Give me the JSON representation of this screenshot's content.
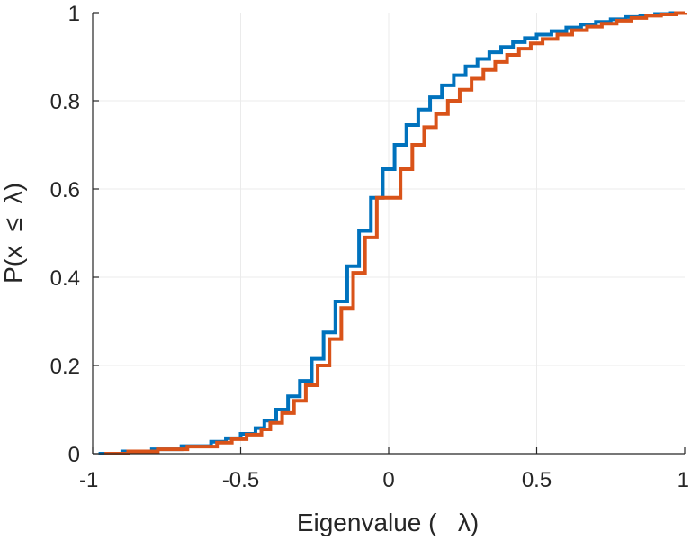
{
  "chart_data": {
    "type": "line",
    "subtype": "step",
    "xlabel": "Eigenvalue (   λ)",
    "ylabel": "P(x  ≤  λ)",
    "xlim": [
      -1,
      1
    ],
    "ylim": [
      0,
      1
    ],
    "xticks": [
      -1,
      -0.5,
      0,
      0.5,
      1
    ],
    "xtick_labels": [
      "-1",
      "-0.5",
      "0",
      "0.5",
      "1"
    ],
    "yticks": [
      0,
      0.2,
      0.4,
      0.6,
      0.8,
      1
    ],
    "ytick_labels": [
      "0",
      "0.2",
      "0.4",
      "0.6",
      "0.8",
      "1"
    ],
    "grid": true,
    "colors": {
      "axis": "#262626",
      "grid": "#ebebeb"
    },
    "series": [
      {
        "color": "#0072BD",
        "x": [
          -0.98,
          -0.9,
          -0.8,
          -0.7,
          -0.6,
          -0.55,
          -0.5,
          -0.45,
          -0.42,
          -0.38,
          -0.34,
          -0.3,
          -0.26,
          -0.22,
          -0.18,
          -0.14,
          -0.1,
          -0.06,
          -0.02,
          0.02,
          0.06,
          0.1,
          0.14,
          0.18,
          0.22,
          0.26,
          0.3,
          0.34,
          0.38,
          0.42,
          0.46,
          0.5,
          0.55,
          0.6,
          0.65,
          0.7,
          0.75,
          0.8,
          0.85,
          0.9,
          0.95,
          1.0
        ],
        "y": [
          0.0,
          0.005,
          0.01,
          0.017,
          0.027,
          0.035,
          0.045,
          0.058,
          0.075,
          0.1,
          0.13,
          0.165,
          0.215,
          0.275,
          0.345,
          0.425,
          0.505,
          0.58,
          0.645,
          0.7,
          0.745,
          0.78,
          0.808,
          0.835,
          0.858,
          0.878,
          0.895,
          0.91,
          0.922,
          0.933,
          0.942,
          0.95,
          0.958,
          0.966,
          0.973,
          0.979,
          0.985,
          0.99,
          0.994,
          0.997,
          0.999,
          1.0
        ]
      },
      {
        "color": "#D95319",
        "x": [
          -0.96,
          -0.88,
          -0.78,
          -0.68,
          -0.58,
          -0.53,
          -0.48,
          -0.43,
          -0.4,
          -0.36,
          -0.32,
          -0.28,
          -0.24,
          -0.2,
          -0.16,
          -0.12,
          -0.08,
          -0.04,
          0.0,
          0.04,
          0.08,
          0.12,
          0.16,
          0.2,
          0.24,
          0.28,
          0.32,
          0.36,
          0.4,
          0.44,
          0.48,
          0.52,
          0.57,
          0.62,
          0.67,
          0.72,
          0.77,
          0.82,
          0.87,
          0.92,
          0.97,
          1.0
        ],
        "y": [
          0.0,
          0.005,
          0.01,
          0.016,
          0.025,
          0.033,
          0.043,
          0.055,
          0.07,
          0.092,
          0.12,
          0.155,
          0.2,
          0.26,
          0.33,
          0.41,
          0.49,
          0.58,
          0.58,
          0.645,
          0.7,
          0.74,
          0.77,
          0.8,
          0.825,
          0.85,
          0.87,
          0.888,
          0.904,
          0.918,
          0.93,
          0.94,
          0.95,
          0.96,
          0.968,
          0.975,
          0.982,
          0.988,
          0.993,
          0.996,
          0.999,
          1.0
        ]
      }
    ]
  }
}
